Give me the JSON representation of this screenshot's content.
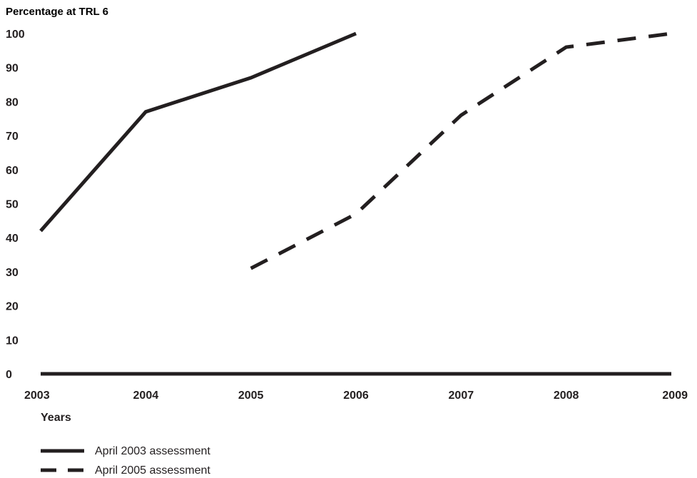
{
  "chart_data": {
    "type": "line",
    "ylabel": "Percentage at TRL 6",
    "xlabel": "Years",
    "x": [
      2003,
      2004,
      2005,
      2006,
      2007,
      2008,
      2009
    ],
    "xlim": [
      2003,
      2009
    ],
    "ylim": [
      0,
      100
    ],
    "y_ticks": [
      0,
      10,
      20,
      30,
      40,
      50,
      60,
      70,
      80,
      90,
      100
    ],
    "grid": false,
    "legend_position": "bottom-left",
    "series": [
      {
        "name": "April 2003 assessment",
        "style": "solid",
        "color": "#231f20",
        "points": [
          {
            "x": 2003,
            "y": 42
          },
          {
            "x": 2004,
            "y": 77
          },
          {
            "x": 2005,
            "y": 87
          },
          {
            "x": 2006,
            "y": 100
          }
        ]
      },
      {
        "name": "April 2005 assessment",
        "style": "dashed",
        "color": "#231f20",
        "points": [
          {
            "x": 2005,
            "y": 31
          },
          {
            "x": 2006,
            "y": 47
          },
          {
            "x": 2007,
            "y": 76
          },
          {
            "x": 2008,
            "y": 96
          },
          {
            "x": 2009,
            "y": 100
          }
        ]
      }
    ]
  }
}
